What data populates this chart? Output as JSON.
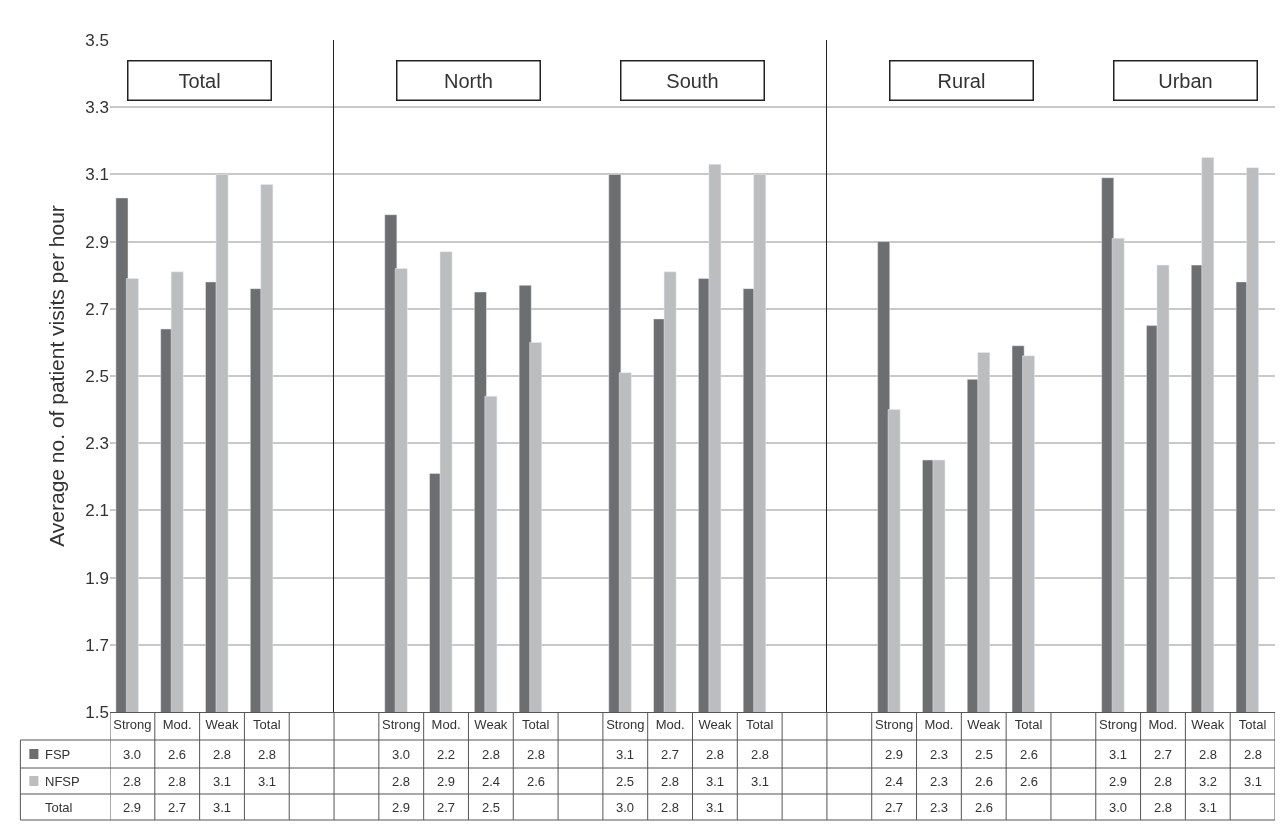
{
  "chart_data": [
    {
      "type": "bar",
      "ylabel": "Average no. of patient visits per hour",
      "categories": [
        "Strong",
        "Mod.",
        "Weak",
        "Total",
        null
      ],
      "ylim": [
        1.5,
        3.5
      ],
      "yticks": [
        1.5,
        1.7,
        1.9,
        2.1,
        2.3,
        2.5,
        2.7,
        2.9,
        3.1,
        3.3,
        3.5
      ],
      "grid": "y",
      "legend": "bottom left",
      "annotations": [
        "Total"
      ],
      "series": [
        {
          "name": "FSP",
          "color": "#6d6e70",
          "values": [
            3.03,
            2.64,
            2.78,
            2.76,
            null
          ],
          "value_labels": [
            "3.0",
            "2.6",
            "2.8",
            "2.8",
            null
          ]
        },
        {
          "name": "NFSP",
          "color": "#bcbdbf",
          "values": [
            2.79,
            2.81,
            3.1,
            3.07,
            null
          ],
          "value_labels": [
            "2.8",
            "2.8",
            "3.1",
            "3.1",
            null
          ]
        },
        {
          "name": "Total",
          "values": [
            null,
            null,
            null,
            null,
            null
          ],
          "value_labels": [
            "2.9",
            "2.7",
            "3.1",
            null,
            null
          ]
        }
      ]
    },
    {
      "type": "bar",
      "categories": [
        null,
        "Strong",
        "Mod.",
        "Weak",
        "Total",
        null,
        "Strong",
        "Mod.",
        "Weak",
        "Total",
        null
      ],
      "ylim": [
        1.5,
        3.5
      ],
      "yticks": [
        1.5,
        1.7,
        1.9,
        2.1,
        2.3,
        2.5,
        2.7,
        2.9,
        3.1,
        3.3,
        3.5
      ],
      "tick_labels": "x",
      "grid": "y",
      "annotations": [
        "North",
        "South"
      ],
      "series": [
        {
          "color": "#6d6e70",
          "values": [
            null,
            2.98,
            2.21,
            2.75,
            2.77,
            null,
            3.1,
            2.67,
            2.79,
            2.76,
            null
          ],
          "value_labels": [
            null,
            "3.0",
            "2.2",
            "2.8",
            "2.8",
            null,
            "3.1",
            "2.7",
            "2.8",
            "2.8",
            null
          ]
        },
        {
          "color": "#bcbdbf",
          "values": [
            null,
            2.82,
            2.87,
            2.44,
            2.6,
            null,
            2.51,
            2.81,
            3.13,
            3.1,
            null
          ],
          "value_labels": [
            null,
            "2.8",
            "2.9",
            "2.4",
            "2.6",
            null,
            "2.5",
            "2.8",
            "3.1",
            "3.1",
            null
          ]
        },
        {
          "values": [
            null,
            null,
            null,
            null,
            null,
            null,
            null,
            null,
            null,
            null,
            null
          ],
          "value_labels": [
            null,
            "2.9",
            "2.7",
            "2.5",
            null,
            null,
            "3.0",
            "2.8",
            "3.1",
            null,
            null
          ]
        }
      ]
    },
    {
      "type": "bar",
      "categories": [
        null,
        "Strong",
        "Mod.",
        "Weak",
        "Total",
        null,
        "Strong",
        "Mod.",
        "Weak",
        "Total"
      ],
      "ylim": [
        1.5,
        3.5
      ],
      "yticks": [
        1.5,
        1.7,
        1.9,
        2.1,
        2.3,
        2.5,
        2.7,
        2.9,
        3.1,
        3.3,
        3.5
      ],
      "tick_labels": "x",
      "grid": "y",
      "annotations": [
        "Rural",
        "Urban"
      ],
      "series": [
        {
          "color": "#6d6e70",
          "values": [
            null,
            2.9,
            2.25,
            2.49,
            2.59,
            null,
            3.09,
            2.65,
            2.83,
            2.78
          ],
          "value_labels": [
            null,
            "2.9",
            "2.3",
            "2.5",
            "2.6",
            null,
            "3.1",
            "2.7",
            "2.8",
            "2.8"
          ]
        },
        {
          "color": "#bcbdbf",
          "values": [
            null,
            2.4,
            2.25,
            2.57,
            2.56,
            null,
            2.91,
            2.83,
            3.15,
            3.12
          ],
          "value_labels": [
            null,
            "2.4",
            "2.3",
            "2.6",
            "2.6",
            null,
            "2.9",
            "2.8",
            "3.2",
            "3.1"
          ]
        },
        {
          "values": [
            null,
            null,
            null,
            null,
            null,
            null,
            null,
            null,
            null,
            null
          ],
          "value_labels": [
            null,
            "2.7",
            "2.3",
            "2.6",
            null,
            null,
            "3.0",
            "2.8",
            "3.1",
            null
          ]
        }
      ]
    }
  ]
}
